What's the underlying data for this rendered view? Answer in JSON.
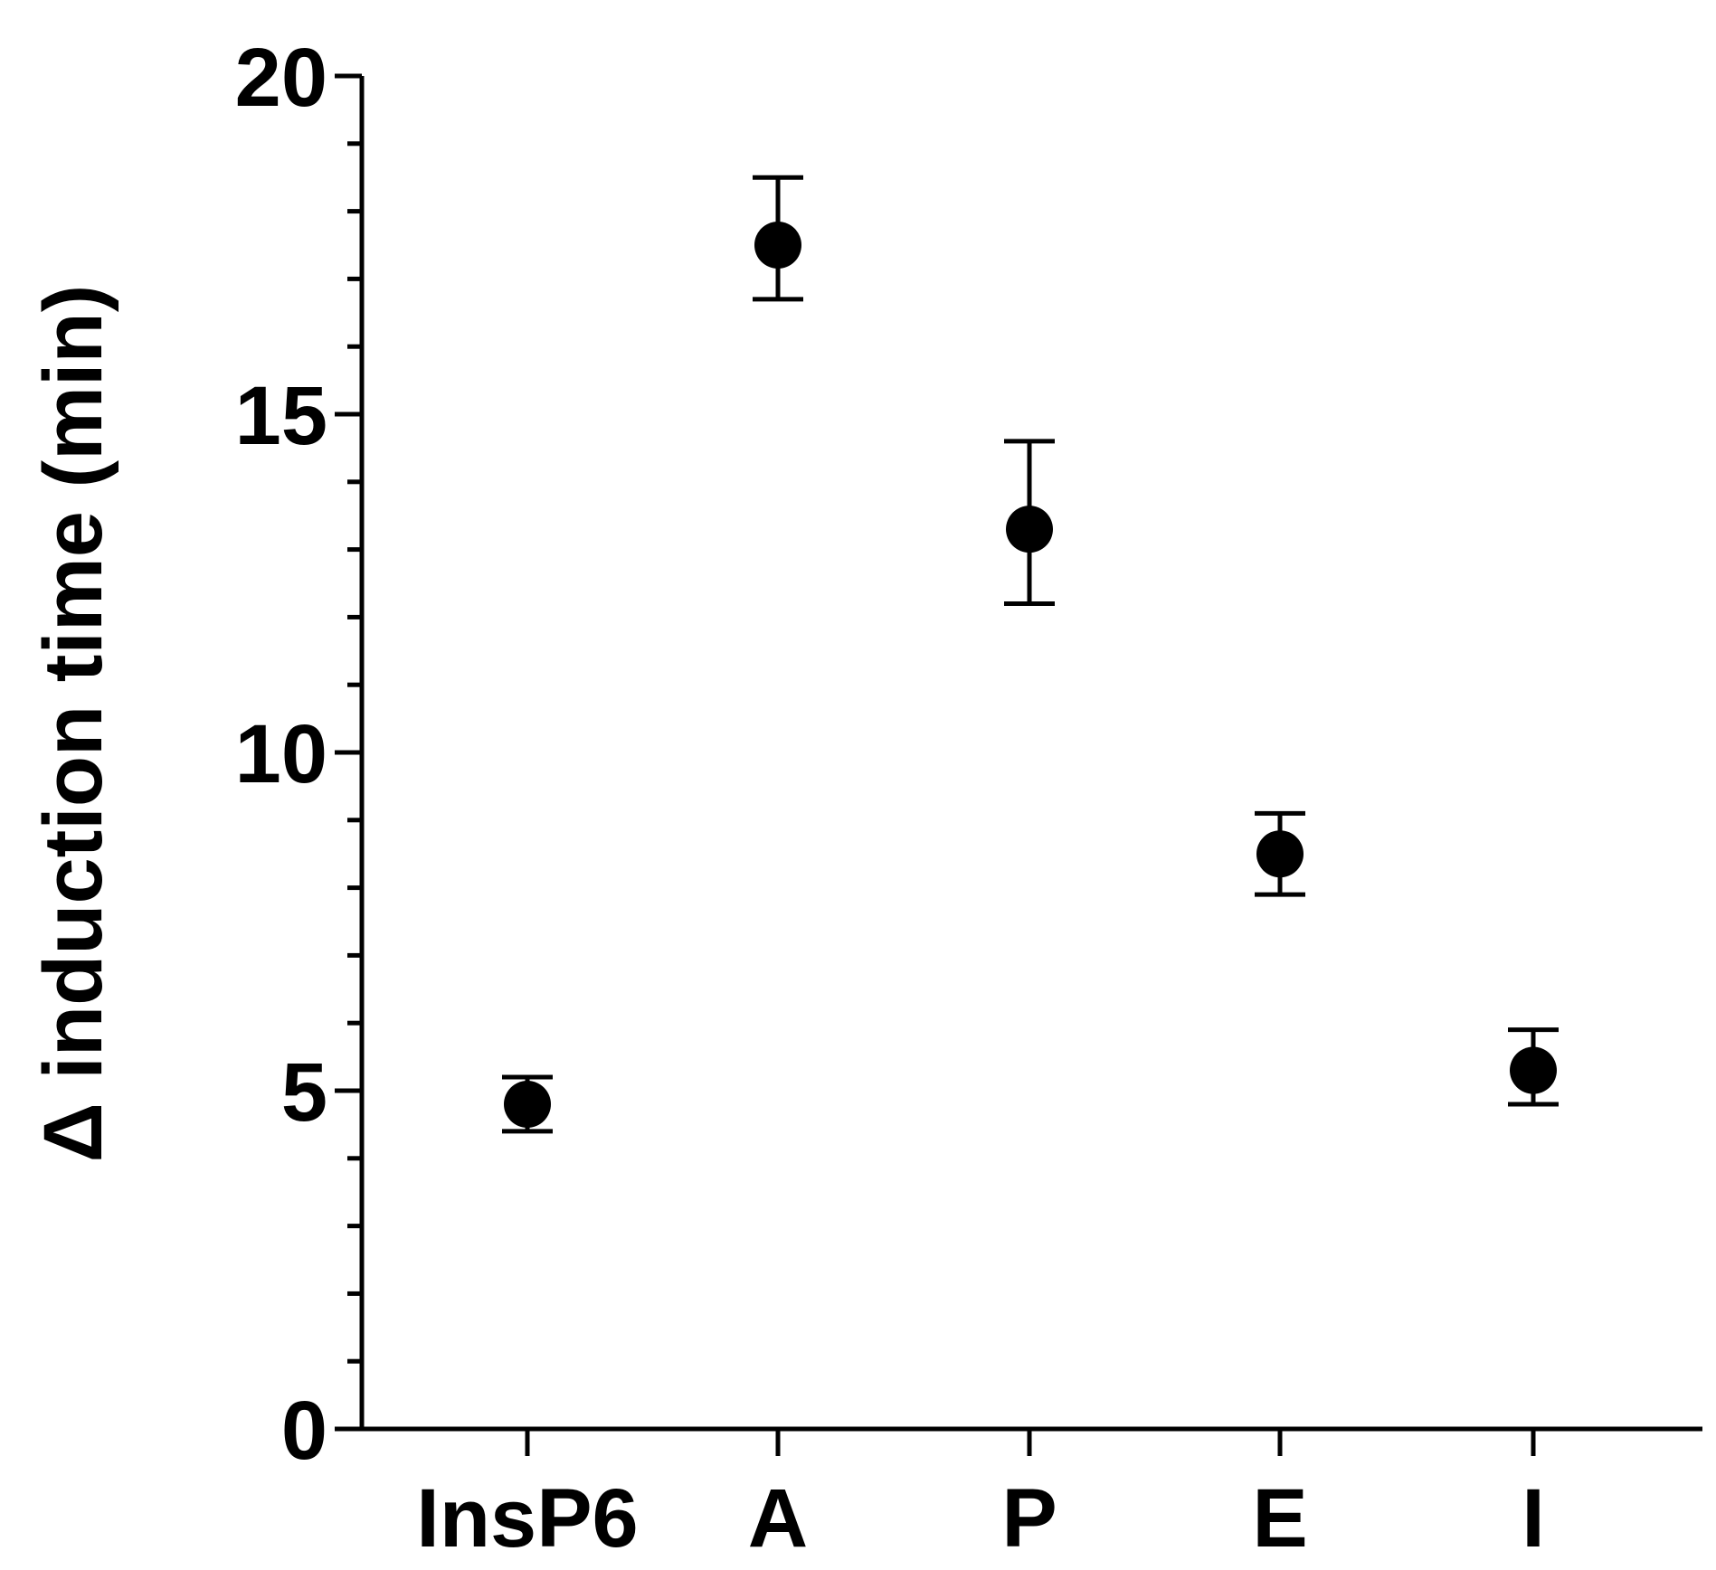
{
  "chart_data": {
    "type": "scatter",
    "title": "",
    "xlabel": "",
    "ylabel": "Δ induction time (min)",
    "categories": [
      "InsP6",
      "A",
      "P",
      "E",
      "I"
    ],
    "series": [
      {
        "values": [
          4.8,
          17.5,
          13.3,
          8.5,
          5.3
        ],
        "error_lower": [
          4.4,
          16.7,
          12.2,
          7.9,
          4.8
        ],
        "error_upper": [
          5.2,
          18.5,
          14.6,
          9.1,
          5.9
        ]
      }
    ],
    "ylim": [
      0,
      20
    ],
    "yticks": [
      0,
      5,
      10,
      15,
      20
    ],
    "yticks_labels": [
      "0",
      "5",
      "10",
      "15",
      "20"
    ],
    "y_minor_step": 1,
    "grid": false,
    "legend": "none",
    "colors": {
      "marker": "#000000",
      "axis": "#000000"
    }
  }
}
